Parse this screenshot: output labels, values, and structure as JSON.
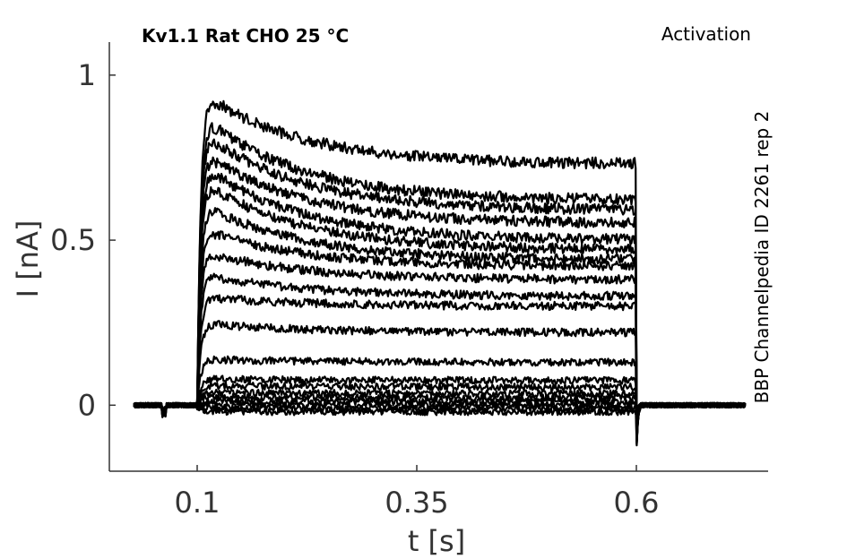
{
  "chart_data": {
    "type": "line",
    "title": "Kv1.1  Rat  CHO  25 °C",
    "title_right": "Activation",
    "side_label": "BBP Channelpedia ID 2261 rep 2",
    "xlabel": "t [s]",
    "ylabel": "I [nA]",
    "xlim": [
      0.0,
      0.75
    ],
    "ylim": [
      -0.2,
      1.1
    ],
    "x_ticks": [
      0.1,
      0.35,
      0.6
    ],
    "x_tick_labels": [
      "0.1",
      "0.35",
      "0.6"
    ],
    "y_ticks": [
      0,
      0.5,
      1
    ],
    "y_tick_labels": [
      "0",
      "0.5",
      "1"
    ],
    "grid": false,
    "stimulus_window": [
      0.1,
      0.6
    ],
    "trace_time_range": [
      0.028,
      0.725
    ],
    "series": [
      {
        "peak": 0.96,
        "end": 0.73
      },
      {
        "peak": 0.89,
        "end": 0.62
      },
      {
        "peak": 0.84,
        "end": 0.59
      },
      {
        "peak": 0.78,
        "end": 0.55
      },
      {
        "peak": 0.74,
        "end": 0.5
      },
      {
        "peak": 0.69,
        "end": 0.47
      },
      {
        "peak": 0.62,
        "end": 0.44
      },
      {
        "peak": 0.54,
        "end": 0.42
      },
      {
        "peak": 0.47,
        "end": 0.38
      },
      {
        "peak": 0.4,
        "end": 0.33
      },
      {
        "peak": 0.33,
        "end": 0.3
      },
      {
        "peak": 0.25,
        "end": 0.22
      },
      {
        "peak": 0.14,
        "end": 0.13
      },
      {
        "peak": 0.08,
        "end": 0.075
      },
      {
        "peak": 0.06,
        "end": 0.055
      },
      {
        "peak": 0.04,
        "end": 0.035
      },
      {
        "peak": 0.025,
        "end": 0.022
      },
      {
        "peak": 0.012,
        "end": 0.01
      },
      {
        "peak": 0.0,
        "end": 0.0
      },
      {
        "peak": -0.01,
        "end": -0.01
      },
      {
        "peak": -0.02,
        "end": -0.02
      }
    ]
  }
}
